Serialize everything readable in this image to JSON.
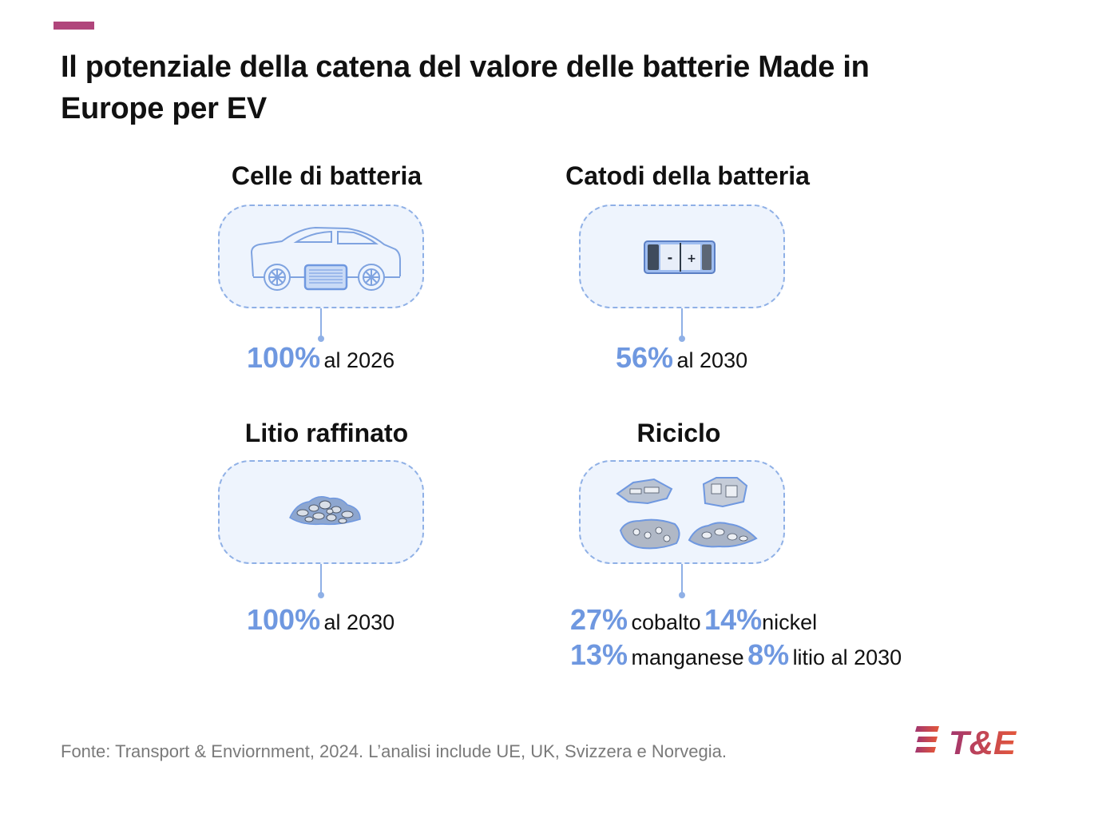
{
  "header": {
    "title": "Il potenziale della catena del valore delle batterie Made in Europe per EV"
  },
  "colors": {
    "accent_bar": "#b0457b",
    "highlight_blue": "#6f98e0",
    "box_border": "#8fb0e6",
    "box_fill": "#eef4fd",
    "logo_gradient_start": "#a1356f",
    "logo_gradient_end": "#e4573a"
  },
  "panels": {
    "cells": {
      "title": "Celle di batteria",
      "icon": "car-battery-icon",
      "value": "100%",
      "label": "al 2026"
    },
    "cathodes": {
      "title": "Catodi della batteria",
      "icon": "battery-icon",
      "value": "56%",
      "label": "al 2030"
    },
    "lithium": {
      "title": "Litio raffinato",
      "icon": "lithium-pile-icon",
      "value": "100%",
      "label": "al 2030"
    },
    "recycling": {
      "title": "Riciclo",
      "icon": "recycled-metals-icon",
      "items": [
        {
          "value": "27%",
          "label": "cobalto"
        },
        {
          "value": "14%",
          "label": "nickel"
        },
        {
          "value": "13%",
          "label": "manganese"
        },
        {
          "value": "8%",
          "label": "litio al 2030"
        }
      ]
    }
  },
  "footer": {
    "source": "Fonte: Transport & Enviornment, 2024. L’analisi include UE, UK, Svizzera e Norvegia."
  },
  "logo": {
    "text": "T&E"
  }
}
